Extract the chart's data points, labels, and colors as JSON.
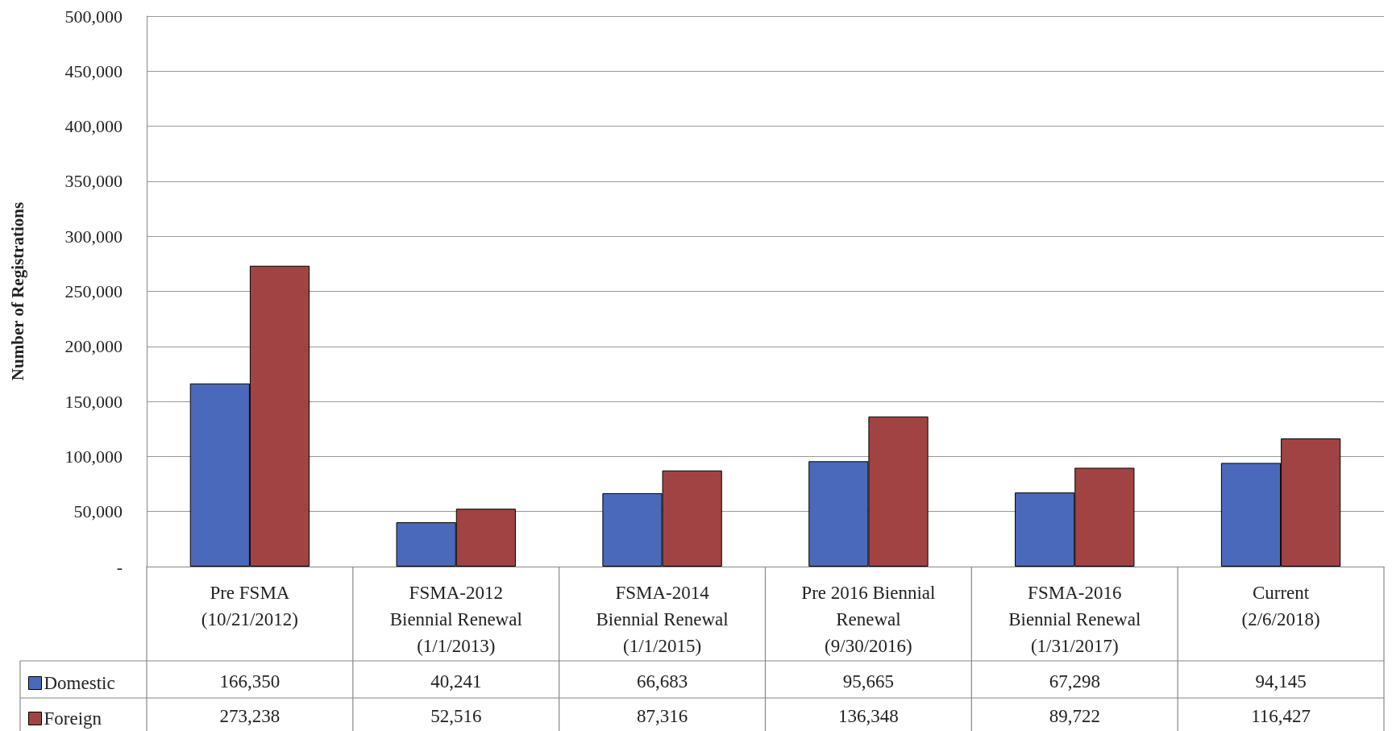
{
  "chart_data": {
    "type": "bar",
    "ylabel": "Number of Registrations",
    "categories": [
      "Pre FSMA (10/21/2012)",
      "FSMA-2012 Biennial Renewal (1/1/2013)",
      "FSMA-2014 Biennial Renewal (1/1/2015)",
      "Pre 2016 Biennial Renewal (9/30/2016)",
      "FSMA-2016 Biennial Renewal (1/31/2017)",
      "Current (2/6/2018)"
    ],
    "series": [
      {
        "name": "Domestic",
        "color": "#4a69bb",
        "values": [
          166350,
          40241,
          66683,
          95665,
          67298,
          94145
        ],
        "value_labels": [
          "166,350",
          "40,241",
          "66,683",
          "95,665",
          "67,298",
          "94,145"
        ]
      },
      {
        "name": "Foreign",
        "color": "#a14343",
        "values": [
          273238,
          52516,
          87316,
          136348,
          89722,
          116427
        ],
        "value_labels": [
          "273,238",
          "52,516",
          "87,316",
          "136,348",
          "89,722",
          "116,427"
        ]
      }
    ],
    "ylim": [
      0,
      500000
    ],
    "yticks": [
      {
        "value": 0,
        "label": "-"
      },
      {
        "value": 50000,
        "label": "50,000"
      },
      {
        "value": 100000,
        "label": "100,000"
      },
      {
        "value": 150000,
        "label": "150,000"
      },
      {
        "value": 200000,
        "label": "200,000"
      },
      {
        "value": 250000,
        "label": "250,000"
      },
      {
        "value": 300000,
        "label": "300,000"
      },
      {
        "value": 350000,
        "label": "350,000"
      },
      {
        "value": 400000,
        "label": "400,000"
      },
      {
        "value": 450000,
        "label": "450,000"
      },
      {
        "value": 500000,
        "label": "500,000"
      }
    ],
    "grid": "y",
    "legend": "bottom left"
  }
}
